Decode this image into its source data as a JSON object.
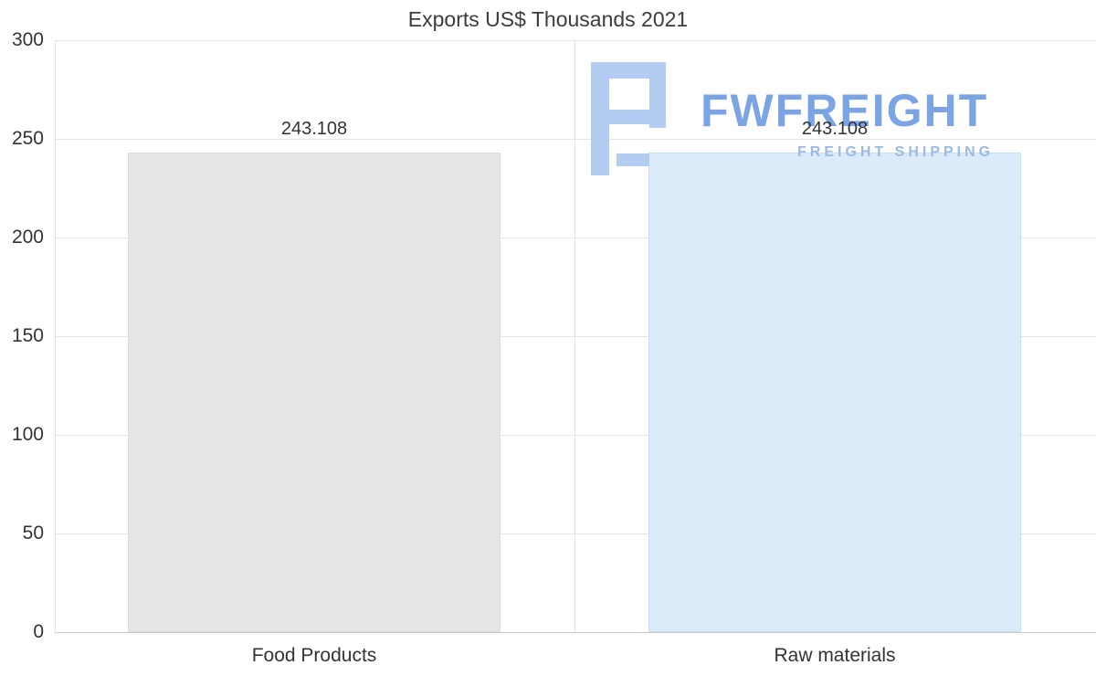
{
  "chart_data": {
    "type": "bar",
    "title": "Exports US$ Thousands 2021",
    "categories": [
      "Food Products",
      "Raw materials"
    ],
    "values": [
      243.108,
      243.108
    ],
    "value_labels": [
      "243.108",
      "243.108"
    ],
    "xlabel": "",
    "ylabel": "",
    "ylim": [
      0,
      300
    ],
    "yticks": [
      0,
      50,
      100,
      150,
      200,
      250,
      300
    ],
    "grid": true,
    "legend_position": "none",
    "bar_colors": [
      "#e6e6e6",
      "#dcebfa"
    ],
    "bar_border_colors": [
      "#dcdcdc",
      "#c8def3"
    ]
  },
  "watermark": {
    "brand": "FWFREIGHT",
    "tagline": "FREIGHT SHIPPING",
    "brand_color": "#7ba4e4",
    "tagline_color": "#9cbae7",
    "icon_color": "#b3cdf2",
    "icon_name": "fwfreight-logo-icon"
  }
}
